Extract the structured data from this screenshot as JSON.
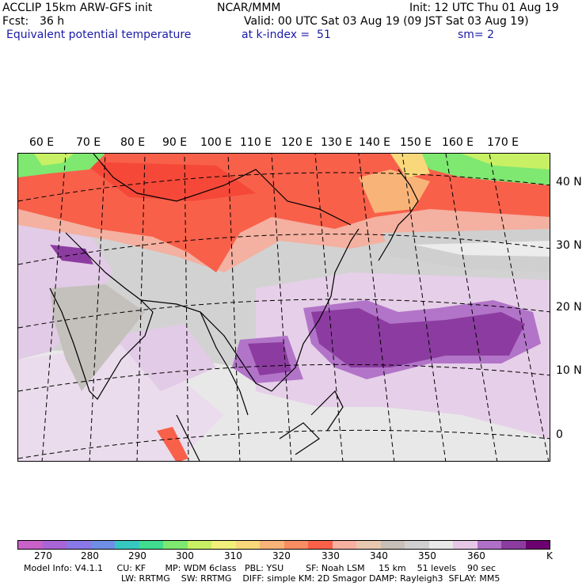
{
  "header": {
    "model": "ACCLIP 15km ARW-GFS init",
    "org": "NCAR/MMM",
    "init": "Init: 12 UTC Thu 01 Aug 19",
    "fcst_label": "Fcst:",
    "fcst_value": "36 h",
    "valid": "Valid: 00 UTC Sat 03 Aug 19 (09 JST Sat 03 Aug 19)",
    "field": "Equivalent potential temperature",
    "level": "at k-index =  51",
    "smooth": "sm= 2"
  },
  "map": {
    "lon_labels": [
      "60 E",
      "70 E",
      "80 E",
      "90 E",
      "100 E",
      "110 E",
      "120 E",
      "130 E",
      "140 E",
      "150 E",
      "160 E",
      "170 E"
    ],
    "lat_labels": [
      "40 N",
      "30 N",
      "20 N",
      "10 N",
      "0"
    ]
  },
  "colorbar": {
    "colors": [
      "#c862c8",
      "#a865d8",
      "#8a78e8",
      "#6f8ee6",
      "#36c8c0",
      "#40dc90",
      "#7ee870",
      "#c8f064",
      "#f0f07a",
      "#f8d87a",
      "#f8b478",
      "#f88c62",
      "#f8604a",
      "#f8b0a0",
      "#e8c8b0",
      "#c8c0b8",
      "#d0d0d0",
      "#e8e8e8",
      "#e6c8e6",
      "#b070c8",
      "#8c3ca0",
      "#6c0070"
    ],
    "tick_labels": [
      "270",
      "280",
      "290",
      "300",
      "310",
      "320",
      "330",
      "340",
      "350",
      "360"
    ],
    "unit": "K"
  },
  "footer": {
    "line1": "Model Info: V4.1.1     CU: KF       MP: WDM 6class   PBL: YSU        SF: Noah LSM     15 km    51 levels    90 sec",
    "line2": "LW: RRTMG    SW: RRTMG    DIFF: simple KM: 2D Smagor DAMP: Rayleigh3  SFLAY: MM5"
  }
}
